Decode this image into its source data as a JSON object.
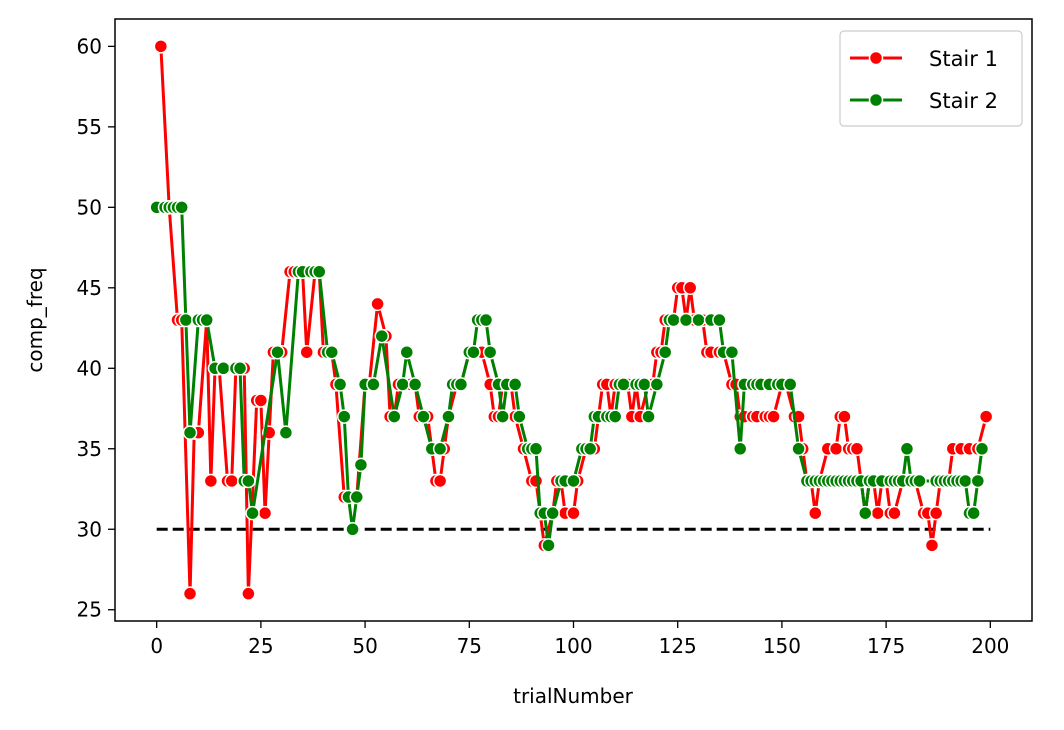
{
  "chart_data": {
    "type": "line",
    "xlabel": "trialNumber",
    "ylabel": "comp_freq",
    "xlim": [
      -10,
      210
    ],
    "ylim": [
      24.3,
      61.7
    ],
    "x_ticks": [
      0,
      25,
      50,
      75,
      100,
      125,
      150,
      175,
      200
    ],
    "y_ticks": [
      25,
      30,
      35,
      40,
      45,
      50,
      55,
      60
    ],
    "grid": false,
    "legend_position": "top-right",
    "reference_line": {
      "y": 30,
      "x_start": 0,
      "x_end": 200,
      "style": "dashed",
      "color": "#000000"
    },
    "series": [
      {
        "name": "Stair 1",
        "color": "#ff0000",
        "x": [
          1,
          3,
          5,
          6,
          8,
          9,
          10,
          12,
          13,
          14,
          15,
          17,
          18,
          19,
          21,
          22,
          24,
          25,
          26,
          27,
          28,
          29,
          30,
          32,
          33,
          35,
          36,
          38,
          39,
          40,
          42,
          43,
          45,
          46,
          48,
          50,
          51,
          53,
          55,
          56,
          57,
          58,
          60,
          61,
          62,
          63,
          64,
          65,
          67,
          68,
          69,
          70,
          72,
          73,
          75,
          76,
          78,
          80,
          81,
          82,
          83,
          85,
          86,
          88,
          90,
          91,
          92,
          93,
          95,
          96,
          97,
          98,
          100,
          101,
          103,
          105,
          106,
          107,
          108,
          109,
          110,
          111,
          113,
          114,
          115,
          116,
          118,
          119,
          120,
          121,
          122,
          123,
          124,
          125,
          126,
          127,
          128,
          129,
          130,
          131,
          132,
          133,
          135,
          136,
          138,
          139,
          140,
          141,
          143,
          144,
          146,
          147,
          148,
          150,
          151,
          153,
          154,
          155,
          156,
          157,
          158,
          159,
          161,
          163,
          164,
          165,
          166,
          167,
          168,
          170,
          171,
          172,
          173,
          174,
          175,
          176,
          177,
          179,
          180,
          182,
          184,
          185,
          186,
          187,
          188,
          190,
          191,
          193,
          195,
          197,
          199
        ],
        "values": [
          60,
          50,
          43,
          43,
          26,
          36,
          36,
          43,
          33,
          40,
          40,
          33,
          33,
          40,
          40,
          26,
          38,
          38,
          31,
          36,
          41,
          41,
          41,
          46,
          46,
          46,
          41,
          46,
          46,
          41,
          41,
          39,
          32,
          32,
          32,
          39,
          39,
          44,
          42,
          37,
          37,
          39,
          39,
          39,
          39,
          37,
          37,
          37,
          33,
          33,
          35,
          37,
          39,
          39,
          41,
          41,
          41,
          39,
          37,
          37,
          39,
          39,
          37,
          35,
          33,
          33,
          31,
          29,
          31,
          33,
          33,
          31,
          31,
          33,
          35,
          35,
          37,
          39,
          39,
          37,
          39,
          39,
          39,
          37,
          39,
          37,
          39,
          39,
          41,
          41,
          43,
          43,
          43,
          45,
          45,
          43,
          45,
          43,
          43,
          43,
          41,
          41,
          41,
          41,
          39,
          39,
          37,
          37,
          37,
          37,
          37,
          37,
          37,
          39,
          39,
          37,
          37,
          35,
          33,
          33,
          31,
          33,
          35,
          35,
          37,
          37,
          35,
          35,
          35,
          31,
          33,
          33,
          31,
          33,
          33,
          31,
          31,
          33,
          33,
          33,
          31,
          31,
          29,
          31,
          33,
          33,
          35,
          35,
          35,
          35,
          37
        ]
      },
      {
        "name": "Stair 2",
        "color": "#008000",
        "x": [
          0,
          2,
          3,
          4,
          5,
          6,
          7,
          8,
          10,
          11,
          12,
          14,
          16,
          19,
          20,
          21,
          22,
          23,
          29,
          31,
          34,
          35,
          37,
          38,
          39,
          41,
          42,
          44,
          45,
          46,
          47,
          48,
          49,
          50,
          52,
          54,
          57,
          59,
          60,
          62,
          64,
          66,
          68,
          70,
          71,
          72,
          73,
          75,
          76,
          77,
          78,
          79,
          80,
          82,
          83,
          84,
          86,
          87,
          89,
          90,
          91,
          92,
          93,
          94,
          95,
          97,
          98,
          100,
          102,
          103,
          104,
          105,
          106,
          108,
          109,
          110,
          111,
          112,
          115,
          116,
          117,
          118,
          120,
          122,
          123,
          124,
          127,
          130,
          133,
          135,
          136,
          138,
          140,
          141,
          143,
          144,
          145,
          147,
          149,
          150,
          152,
          154,
          156,
          157,
          158,
          159,
          160,
          161,
          162,
          163,
          164,
          165,
          166,
          167,
          168,
          169,
          170,
          171,
          172,
          174,
          176,
          177,
          178,
          179,
          180,
          181,
          182,
          183,
          187,
          188,
          189,
          190,
          191,
          192,
          193,
          194,
          195,
          196,
          197,
          198
        ],
        "values": [
          50,
          50,
          50,
          50,
          50,
          50,
          43,
          36,
          43,
          43,
          43,
          40,
          40,
          40,
          40,
          33,
          33,
          31,
          41,
          36,
          46,
          46,
          46,
          46,
          46,
          41,
          41,
          39,
          37,
          32,
          30,
          32,
          34,
          39,
          39,
          42,
          37,
          39,
          41,
          39,
          37,
          35,
          35,
          37,
          39,
          39,
          39,
          41,
          41,
          43,
          43,
          43,
          41,
          39,
          37,
          39,
          39,
          37,
          35,
          35,
          35,
          31,
          31,
          29,
          31,
          33,
          33,
          33,
          35,
          35,
          35,
          37,
          37,
          37,
          37,
          37,
          39,
          39,
          39,
          39,
          39,
          37,
          39,
          41,
          43,
          43,
          43,
          43,
          43,
          43,
          41,
          41,
          35,
          39,
          39,
          39,
          39,
          39,
          39,
          39,
          39,
          35,
          33,
          33,
          33,
          33,
          33,
          33,
          33,
          33,
          33,
          33,
          33,
          33,
          33,
          33,
          31,
          33,
          33,
          33,
          33,
          33,
          33,
          33,
          35,
          33,
          33,
          33,
          33,
          33,
          33,
          33,
          33,
          33,
          33,
          33,
          31,
          31,
          33,
          35
        ]
      }
    ]
  }
}
